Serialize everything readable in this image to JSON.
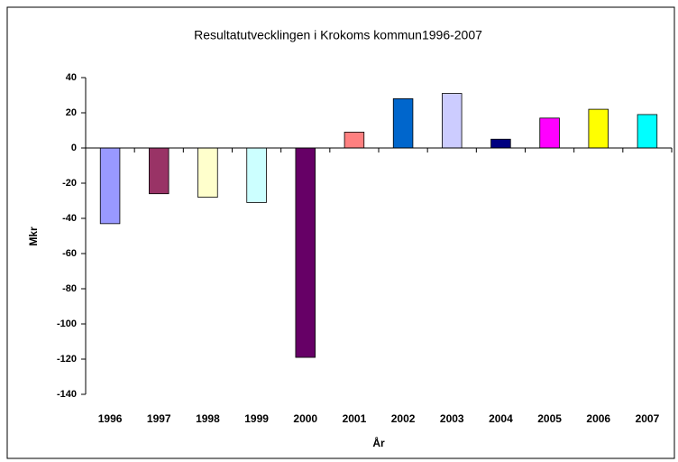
{
  "chart_data": {
    "type": "bar",
    "title": "Resultatutvecklingen i Krokoms kommun1996-2007",
    "x_label": "År",
    "y_label": "Mkr",
    "categories": [
      "1996",
      "1997",
      "1998",
      "1999",
      "2000",
      "2001",
      "2002",
      "2003",
      "2004",
      "2005",
      "2006",
      "2007"
    ],
    "values": [
      -43,
      -26,
      -28,
      -31,
      -119,
      9,
      28,
      31,
      5,
      17,
      22,
      19
    ],
    "colors": [
      "#9999ff",
      "#993366",
      "#ffffcc",
      "#ccffff",
      "#660066",
      "#ff8080",
      "#0066cc",
      "#ccccff",
      "#000080",
      "#ff00ff",
      "#ffff00",
      "#00ffff"
    ],
    "ylim": [
      -140,
      40
    ],
    "yticks": [
      -140,
      -120,
      -100,
      -80,
      -60,
      -40,
      -20,
      0,
      20,
      40
    ],
    "grid": false
  }
}
